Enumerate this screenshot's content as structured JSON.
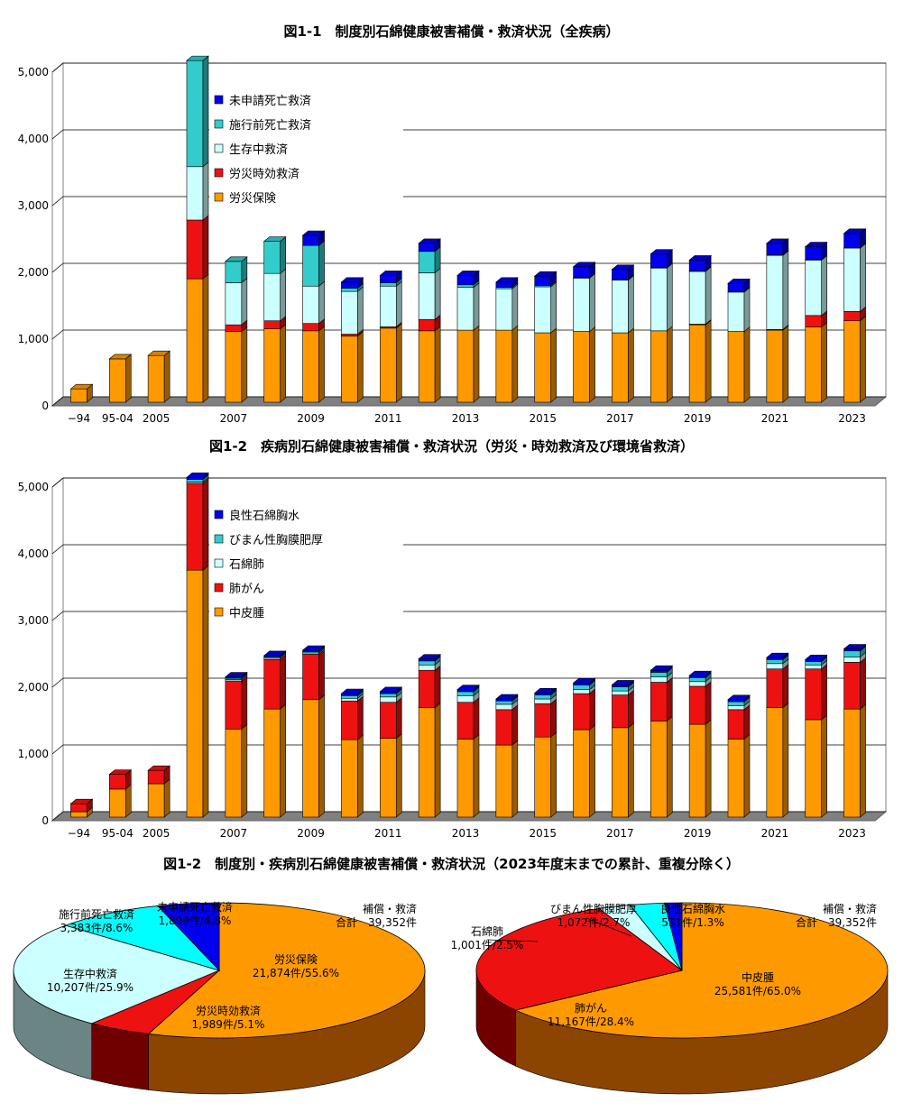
{
  "titles": {
    "chart1": "図1-1　制度別石綿健康被害補償・救済状況（全疾病）",
    "chart2": "図1-2　疾病別石綿健康被害補償・救済状況（労災・時効救済及び環境省救済）",
    "chart3": "図1-2　制度別・疾病別石綿健康被害補償・救済状況（2023年度末までの累計、重複分除く）"
  },
  "pie_notes": {
    "left_total": "補償・救済",
    "left_total2": "合計　39,352件",
    "right_total": "補償・救済",
    "right_total2": "合計　39,352件"
  },
  "chart_data": [
    {
      "type": "bar",
      "stacked": true,
      "title": "図1-1　制度別石綿健康被害補償・救済状況（全疾病）",
      "categories": [
        "−94",
        "95-04",
        "2005",
        "2006",
        "2007",
        "2008",
        "2009",
        "2010",
        "2011",
        "2012",
        "2013",
        "2014",
        "2015",
        "2016",
        "2017",
        "2018",
        "2019",
        "2020",
        "2021",
        "2022",
        "2023"
      ],
      "tick_labels": [
        "−94",
        "95-04",
        "2005",
        "",
        "2007",
        "",
        "2009",
        "",
        "2011",
        "",
        "2013",
        "",
        "2015",
        "",
        "2017",
        "",
        "2019",
        "",
        "2021",
        "",
        "2023"
      ],
      "ylim": [
        0,
        5000
      ],
      "yticks": [
        "0",
        "1,000",
        "2,000",
        "3,000",
        "4,000",
        "5,000"
      ],
      "series": [
        {
          "name": "労災保険",
          "color": "#ff9900",
          "values": [
            200,
            650,
            700,
            1850,
            1060,
            1100,
            1070,
            990,
            1110,
            1070,
            1080,
            1080,
            1040,
            1060,
            1040,
            1070,
            1160,
            1060,
            1080,
            1130,
            1220
          ]
        },
        {
          "name": "労災時効救済",
          "color": "#ee1111",
          "values": [
            0,
            0,
            0,
            880,
            100,
            120,
            110,
            30,
            20,
            170,
            0,
            0,
            0,
            0,
            0,
            0,
            10,
            0,
            10,
            170,
            140
          ]
        },
        {
          "name": "生存中救済",
          "color": "#ccffff",
          "values": [
            0,
            0,
            0,
            800,
            630,
            710,
            560,
            640,
            610,
            700,
            640,
            620,
            690,
            800,
            790,
            940,
            790,
            590,
            1110,
            830,
            950
          ]
        },
        {
          "name": "施行前死亡救済",
          "color": "#33cccc",
          "values": [
            0,
            0,
            0,
            1590,
            320,
            480,
            610,
            50,
            50,
            320,
            40,
            20,
            20,
            10,
            10,
            10,
            10,
            10,
            10,
            10,
            10
          ]
        },
        {
          "name": "未申請死亡救済",
          "color": "#0000ee",
          "values": [
            0,
            0,
            0,
            0,
            0,
            0,
            150,
            90,
            110,
            120,
            140,
            80,
            140,
            160,
            150,
            200,
            160,
            120,
            170,
            190,
            210
          ]
        }
      ],
      "legend_position": "top-center",
      "grid": true
    },
    {
      "type": "bar",
      "stacked": true,
      "title": "図1-2　疾病別石綿健康被害補償・救済状況（労災・時効救済及び環境省救済）",
      "categories": [
        "−94",
        "95-04",
        "2005",
        "2006",
        "2007",
        "2008",
        "2009",
        "2010",
        "2011",
        "2012",
        "2013",
        "2014",
        "2015",
        "2016",
        "2017",
        "2018",
        "2019",
        "2020",
        "2021",
        "2022",
        "2023"
      ],
      "tick_labels": [
        "−94",
        "95-04",
        "2005",
        "",
        "2007",
        "",
        "2009",
        "",
        "2011",
        "",
        "2013",
        "",
        "2015",
        "",
        "2017",
        "",
        "2019",
        "",
        "2021",
        "",
        "2023"
      ],
      "ylim": [
        0,
        5000
      ],
      "yticks": [
        "0",
        "1,000",
        "2,000",
        "3,000",
        "4,000",
        "5,000"
      ],
      "series": [
        {
          "name": "中皮腫",
          "color": "#ff9900",
          "values": [
            80,
            420,
            500,
            3700,
            1320,
            1620,
            1760,
            1160,
            1180,
            1640,
            1170,
            1080,
            1200,
            1310,
            1340,
            1440,
            1390,
            1170,
            1640,
            1460,
            1620
          ]
        },
        {
          "name": "肺がん",
          "color": "#ee1111",
          "values": [
            120,
            220,
            200,
            1300,
            720,
            740,
            680,
            580,
            540,
            560,
            550,
            530,
            500,
            540,
            490,
            580,
            570,
            440,
            580,
            760,
            700
          ]
        },
        {
          "name": "石綿肺",
          "color": "#ccffff",
          "values": [
            0,
            0,
            0,
            20,
            20,
            20,
            20,
            40,
            80,
            80,
            100,
            80,
            70,
            60,
            60,
            80,
            70,
            60,
            80,
            60,
            80
          ]
        },
        {
          "name": "びまん性胸膜肥厚",
          "color": "#33cccc",
          "values": [
            0,
            0,
            0,
            40,
            20,
            20,
            20,
            40,
            50,
            60,
            60,
            50,
            60,
            70,
            60,
            70,
            60,
            60,
            60,
            50,
            90
          ]
        },
        {
          "name": "良性石綿胸水",
          "color": "#0000ee",
          "values": [
            0,
            0,
            0,
            30,
            20,
            20,
            20,
            30,
            30,
            30,
            30,
            30,
            30,
            30,
            30,
            30,
            30,
            30,
            30,
            30,
            30
          ]
        }
      ],
      "legend_position": "top-center",
      "grid": true
    },
    {
      "type": "pie",
      "title": "制度別",
      "slices": [
        {
          "name": "労災保険",
          "label": "21,874件/55.6%",
          "value": 21874,
          "percent": 55.6,
          "color": "#ff9900",
          "side": "#8b4500"
        },
        {
          "name": "労災時効救済",
          "label": "1,989件/5.1%",
          "value": 1989,
          "percent": 5.1,
          "color": "#ee1111",
          "side": "#700000"
        },
        {
          "name": "生存中救済",
          "label": "10,207件/25.9%",
          "value": 10207,
          "percent": 25.9,
          "color": "#ccffff",
          "side": "#6b8585"
        },
        {
          "name": "施行前死亡救済",
          "label": "3,383件/8.6%",
          "value": 3383,
          "percent": 8.6,
          "color": "#00ffff",
          "side": "#007777"
        },
        {
          "name": "未申請死亡救済",
          "label": "1,899件/4.8%",
          "value": 1899,
          "percent": 4.8,
          "color": "#0000ee",
          "side": "#000070"
        }
      ]
    },
    {
      "type": "pie",
      "title": "疾病別",
      "slices": [
        {
          "name": "中皮腫",
          "label": "25,581件/65.0%",
          "value": 25581,
          "percent": 65.0,
          "color": "#ff9900",
          "side": "#8b4500"
        },
        {
          "name": "肺がん",
          "label": "11,167件/28.4%",
          "value": 11167,
          "percent": 28.4,
          "color": "#ee1111",
          "side": "#700000"
        },
        {
          "name": "石綿肺",
          "label": "1,001件/2.5%",
          "value": 1001,
          "percent": 2.5,
          "color": "#ccffff",
          "side": "#6b8585"
        },
        {
          "name": "びまん性胸膜肥厚",
          "label": "1,072件/2.7%",
          "value": 1072,
          "percent": 2.7,
          "color": "#00ffff",
          "side": "#007777"
        },
        {
          "name": "良性石綿胸水",
          "label": "531件/1.3%",
          "value": 531,
          "percent": 1.3,
          "color": "#0000ee",
          "side": "#000070"
        }
      ]
    }
  ]
}
